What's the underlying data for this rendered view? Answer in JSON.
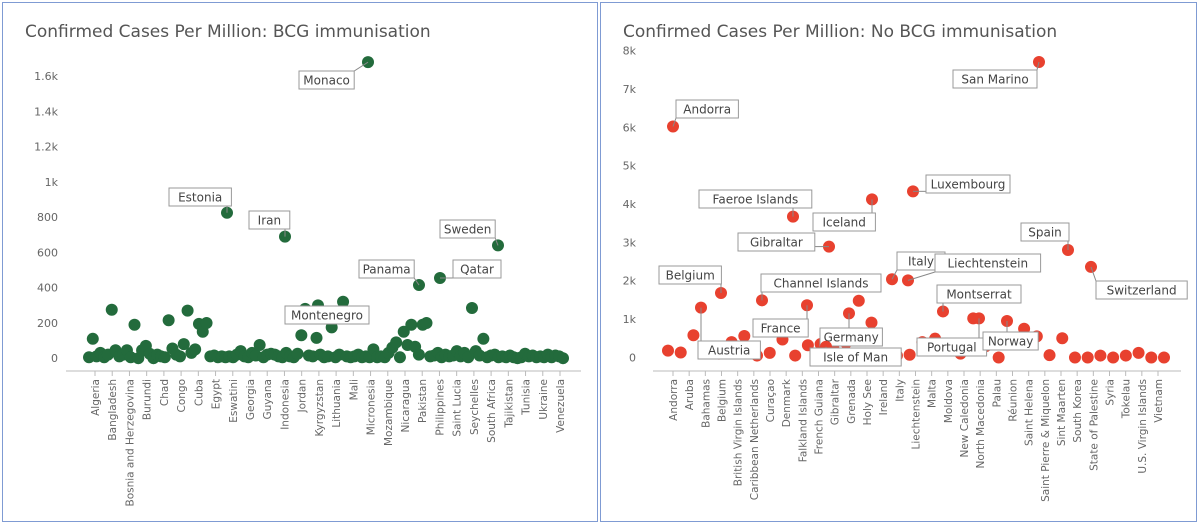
{
  "chart_data": [
    {
      "type": "scatter",
      "title": "Confirmed Cases Per Million: BCG immunisation",
      "xlabel": "",
      "ylabel": "",
      "ylim": [
        -50,
        1800
      ],
      "yticks": [
        0,
        200,
        400,
        600,
        800,
        1000,
        1200,
        1400,
        1600
      ],
      "ytick_labels": [
        "0",
        "200",
        "400",
        "600",
        "800",
        "1k",
        "1.2k",
        "1.4k",
        "1.6k"
      ],
      "grid": false,
      "color": "#236b3c",
      "xtick_labels": [
        "Algeria",
        "Bangladesh",
        "Bosnia and Herzegovina",
        "Burundi",
        "Chad",
        "Congo",
        "Cuba",
        "Egypt",
        "Eswatini",
        "Georgia",
        "Guyana",
        "Indonesia",
        "Jordan",
        "Kyrgyzstan",
        "Lithuania",
        "Mali",
        "Micronesia",
        "Mozambique",
        "Nicaragua",
        "Pakistan",
        "Philippines",
        "Saint Lucia",
        "Seychelles",
        "South Africa",
        "Tajikistan",
        "Tunisia",
        "Ukraine",
        "Venezuela"
      ],
      "n_points": 133,
      "values": [
        5,
        110,
        10,
        30,
        5,
        20,
        275,
        45,
        10,
        20,
        45,
        5,
        190,
        0,
        45,
        70,
        25,
        0,
        20,
        10,
        5,
        215,
        55,
        20,
        10,
        80,
        270,
        30,
        50,
        195,
        150,
        200,
        10,
        15,
        5,
        10,
        5,
        10,
        5,
        20,
        40,
        10,
        5,
        30,
        15,
        75,
        5,
        20,
        25,
        20,
        10,
        5,
        30,
        10,
        5,
        25,
        130,
        280,
        15,
        300,
        10,
        115,
        20,
        5,
        10,
        175,
        5,
        20,
        320,
        10,
        5,
        10,
        20,
        5,
        10,
        5,
        50,
        5,
        10,
        5,
        30,
        60,
        90,
        5,
        150,
        75,
        190,
        65,
        20,
        190,
        200,
        10,
        15,
        30,
        5,
        20,
        10,
        15,
        40,
        10,
        30,
        5,
        285,
        40,
        15,
        110,
        5,
        15,
        20,
        5,
        10,
        5,
        15,
        5,
        0,
        5,
        25,
        10,
        15,
        5,
        10,
        5,
        20,
        5,
        15,
        1680,
        825,
        690,
        415,
        455,
        640,
        10,
        0
      ],
      "labeled_points": [
        {
          "name": "Monaco",
          "value": 1680
        },
        {
          "name": "Estonia",
          "value": 825
        },
        {
          "name": "Iran",
          "value": 690
        },
        {
          "name": "Sweden",
          "value": 640
        },
        {
          "name": "Panama",
          "value": 415
        },
        {
          "name": "Qatar",
          "value": 455
        },
        {
          "name": "Montenegro",
          "value": 300
        }
      ]
    },
    {
      "type": "scatter",
      "title": "Confirmed Cases Per Million: No BCG immunisation",
      "xlabel": "",
      "ylabel": "",
      "ylim": [
        -300,
        8300
      ],
      "yticks": [
        0,
        1000,
        2000,
        3000,
        4000,
        5000,
        6000,
        7000,
        8000
      ],
      "ytick_labels": [
        "0",
        "1k",
        "2k",
        "3k",
        "4k",
        "5k",
        "6k",
        "7k",
        "8k"
      ],
      "grid": false,
      "color": "#e8412f",
      "xtick_labels": [
        "Andorra",
        "Aruba",
        "Bahamas",
        "Belgium",
        "British Virgin Islands",
        "Caribbean Netherlands",
        "Curaçao",
        "Denmark",
        "Falkland Islands",
        "French Guiana",
        "Gibraltar",
        "Grenada",
        "Holy See",
        "Ireland",
        "Italy",
        "Liechtenstein",
        "Malta",
        "Moldova",
        "New Caledonia",
        "North Macedonia",
        "Palau",
        "Réunion",
        "Saint Helena",
        "Saint Pierre & Miquelon",
        "Sint Maarten",
        "South Korea",
        "State of Palestine",
        "Syria",
        "Tokelau",
        "U.S. Virgin Islands",
        "Vietnam"
      ],
      "values": [
        6020,
        180,
        130,
        580,
        220,
        1300,
        100,
        400,
        1680,
        560,
        50,
        120,
        470,
        1490,
        50,
        320,
        3670,
        350,
        1360,
        240,
        1150,
        2890,
        280,
        380,
        4120,
        1480,
        910,
        2040,
        0,
        50,
        2010,
        4330,
        70,
        400,
        1200,
        950,
        490,
        200,
        1020,
        100,
        1020,
        300,
        0,
        390,
        750,
        7700,
        550,
        60,
        500,
        2800,
        0,
        2360,
        0,
        50,
        0,
        50,
        120,
        0,
        0
      ],
      "labeled_points": [
        {
          "name": "Andorra",
          "value": 6020
        },
        {
          "name": "San Marino",
          "value": 7700
        },
        {
          "name": "Luxembourg",
          "value": 4330
        },
        {
          "name": "Faeroe Islands",
          "value": 3670
        },
        {
          "name": "Iceland",
          "value": 4120
        },
        {
          "name": "Gibraltar",
          "value": 2890
        },
        {
          "name": "Spain",
          "value": 2800
        },
        {
          "name": "Belgium",
          "value": 1680
        },
        {
          "name": "Channel Islands",
          "value": 1490
        },
        {
          "name": "Italy",
          "value": 2040
        },
        {
          "name": "Liechtenstein",
          "value": 2010
        },
        {
          "name": "Switzerland",
          "value": 2360
        },
        {
          "name": "Montserrat",
          "value": 1200
        },
        {
          "name": "France",
          "value": 1360
        },
        {
          "name": "Austria",
          "value": 1300
        },
        {
          "name": "Germany",
          "value": 1150
        },
        {
          "name": "Portugal",
          "value": 1020
        },
        {
          "name": "Norway",
          "value": 950
        },
        {
          "name": "Isle of Man",
          "value": 280
        }
      ]
    }
  ]
}
